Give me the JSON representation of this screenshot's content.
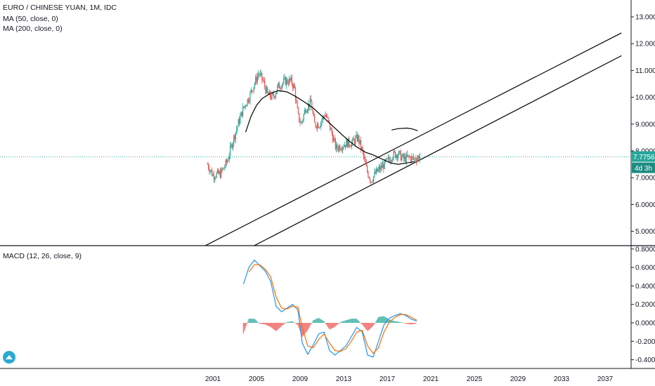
{
  "header": {
    "symbol_title": "EURO / CHINESE YUAN, 1M, IDC",
    "ma_fast": "MA (50, close, 0)",
    "ma_slow": "MA (200, close, 0)",
    "macd_title": "MACD (12, 26, close, 9)"
  },
  "price_badge": {
    "value": "7.7756",
    "countdown": "4d 3h"
  },
  "colors": {
    "up": "#26a69a",
    "down": "#ef5350",
    "ma": "#000000",
    "macd_line": "#2196f3",
    "signal_line": "#ff6d00",
    "hist_pos": "#26a69a",
    "hist_neg": "#ef5350",
    "price_line": "#26a69a",
    "channel": "#000000",
    "logo": "#2aa9d2"
  },
  "chart_data": [
    {
      "type": "candlestick",
      "title": "EURO / CHINESE YUAN, 1M, IDC",
      "x_ticks": [
        "2001",
        "2005",
        "2009",
        "2013",
        "2017",
        "2021",
        "2025",
        "2029",
        "2033",
        "2037"
      ],
      "y_ticks": [
        "5.0000",
        "6.0000",
        "7.0000",
        "8.0000",
        "9.0000",
        "10.0000",
        "11.0000",
        "12.0000",
        "13.0000"
      ],
      "ylim": [
        4.4,
        13.1
      ],
      "last_price": 7.7756,
      "close_path": [
        [
          2000.5,
          7.5
        ],
        [
          2001.0,
          7.1
        ],
        [
          2001.7,
          7.15
        ],
        [
          2002.3,
          7.6
        ],
        [
          2002.7,
          8.2
        ],
        [
          2003.3,
          9.0
        ],
        [
          2003.8,
          9.6
        ],
        [
          2004.3,
          10.0
        ],
        [
          2004.8,
          10.5
        ],
        [
          2005.2,
          10.9
        ],
        [
          2005.6,
          10.6
        ],
        [
          2006.0,
          10.1
        ],
        [
          2006.5,
          10.0
        ],
        [
          2007.0,
          10.4
        ],
        [
          2007.6,
          10.6
        ],
        [
          2008.2,
          10.6
        ],
        [
          2008.5,
          10.3
        ],
        [
          2008.8,
          9.3
        ],
        [
          2009.1,
          9.0
        ],
        [
          2009.5,
          9.6
        ],
        [
          2010.0,
          9.8
        ],
        [
          2010.3,
          9.0
        ],
        [
          2010.8,
          9.0
        ],
        [
          2011.3,
          9.4
        ],
        [
          2011.8,
          8.8
        ],
        [
          2012.3,
          8.1
        ],
        [
          2012.8,
          8.2
        ],
        [
          2013.3,
          8.3
        ],
        [
          2013.8,
          8.3
        ],
        [
          2014.3,
          8.5
        ],
        [
          2014.7,
          8.0
        ],
        [
          2015.1,
          7.3
        ],
        [
          2015.5,
          6.9
        ],
        [
          2016.0,
          7.2
        ],
        [
          2016.5,
          7.4
        ],
        [
          2017.0,
          7.6
        ],
        [
          2017.5,
          7.85
        ],
        [
          2018.0,
          7.9
        ],
        [
          2018.5,
          7.7
        ],
        [
          2019.0,
          7.75
        ],
        [
          2019.5,
          7.7
        ],
        [
          2020.0,
          7.8
        ]
      ],
      "series": [
        {
          "name": "MA (50, close, 0)",
          "points": [
            [
              2004.0,
              8.7
            ],
            [
              2004.5,
              9.3
            ],
            [
              2005.0,
              9.7
            ],
            [
              2005.5,
              9.95
            ],
            [
              2006.3,
              10.15
            ],
            [
              2007.0,
              10.25
            ],
            [
              2007.8,
              10.2
            ],
            [
              2008.5,
              10.05
            ],
            [
              2009.3,
              9.85
            ],
            [
              2010.2,
              9.6
            ],
            [
              2011.0,
              9.3
            ],
            [
              2011.8,
              9.0
            ],
            [
              2012.6,
              8.7
            ],
            [
              2013.4,
              8.4
            ],
            [
              2014.2,
              8.15
            ],
            [
              2015.0,
              7.95
            ],
            [
              2015.7,
              7.85
            ],
            [
              2016.5,
              7.7
            ],
            [
              2017.3,
              7.55
            ],
            [
              2018.0,
              7.5
            ],
            [
              2018.8,
              7.55
            ],
            [
              2019.5,
              7.6
            ]
          ]
        },
        {
          "name": "MA (200, close, 0)",
          "points": [
            [
              2017.4,
              8.78
            ],
            [
              2018.0,
              8.83
            ],
            [
              2018.8,
              8.85
            ],
            [
              2019.3,
              8.82
            ],
            [
              2019.8,
              8.75
            ]
          ]
        }
      ],
      "channel_lines": [
        {
          "from": [
            1999.5,
            4.3
          ],
          "to": [
            2038.5,
            12.4
          ]
        },
        {
          "from": [
            2004.0,
            4.3
          ],
          "to": [
            2038.5,
            11.55
          ]
        }
      ]
    },
    {
      "type": "line",
      "title": "MACD (12, 26, close, 9)",
      "y_ticks": [
        "0.8000",
        "0.6000",
        "0.4000",
        "0.2000",
        "0.0000",
        "-0.2000",
        "-0.4000"
      ],
      "ylim": [
        -0.55,
        0.8
      ],
      "series": [
        {
          "name": "MACD",
          "points": [
            [
              2003.8,
              0.42
            ],
            [
              2004.3,
              0.6
            ],
            [
              2004.8,
              0.68
            ],
            [
              2005.3,
              0.62
            ],
            [
              2005.8,
              0.56
            ],
            [
              2006.3,
              0.45
            ],
            [
              2006.8,
              0.18
            ],
            [
              2007.3,
              0.12
            ],
            [
              2007.8,
              0.16
            ],
            [
              2008.3,
              0.2
            ],
            [
              2008.8,
              0.14
            ],
            [
              2009.2,
              -0.22
            ],
            [
              2009.7,
              -0.34
            ],
            [
              2010.2,
              -0.24
            ],
            [
              2010.7,
              -0.12
            ],
            [
              2011.2,
              -0.1
            ],
            [
              2011.7,
              -0.3
            ],
            [
              2012.2,
              -0.35
            ],
            [
              2012.7,
              -0.3
            ],
            [
              2013.2,
              -0.25
            ],
            [
              2013.7,
              -0.15
            ],
            [
              2014.2,
              -0.05
            ],
            [
              2014.7,
              -0.1
            ],
            [
              2015.2,
              -0.35
            ],
            [
              2015.7,
              -0.37
            ],
            [
              2016.2,
              -0.2
            ],
            [
              2016.7,
              -0.02
            ],
            [
              2017.2,
              0.05
            ],
            [
              2017.7,
              0.08
            ],
            [
              2018.2,
              0.1
            ],
            [
              2018.7,
              0.08
            ],
            [
              2019.2,
              0.04
            ],
            [
              2019.7,
              0.02
            ]
          ]
        },
        {
          "name": "Signal",
          "points": [
            [
              2004.3,
              0.55
            ],
            [
              2004.8,
              0.63
            ],
            [
              2005.3,
              0.63
            ],
            [
              2005.8,
              0.58
            ],
            [
              2006.3,
              0.5
            ],
            [
              2006.8,
              0.28
            ],
            [
              2007.3,
              0.16
            ],
            [
              2007.8,
              0.15
            ],
            [
              2008.3,
              0.18
            ],
            [
              2008.8,
              0.17
            ],
            [
              2009.2,
              -0.05
            ],
            [
              2009.7,
              -0.25
            ],
            [
              2010.2,
              -0.27
            ],
            [
              2010.7,
              -0.18
            ],
            [
              2011.2,
              -0.12
            ],
            [
              2011.7,
              -0.22
            ],
            [
              2012.2,
              -0.3
            ],
            [
              2012.7,
              -0.31
            ],
            [
              2013.2,
              -0.28
            ],
            [
              2013.7,
              -0.2
            ],
            [
              2014.2,
              -0.1
            ],
            [
              2014.7,
              -0.08
            ],
            [
              2015.2,
              -0.25
            ],
            [
              2015.7,
              -0.33
            ],
            [
              2016.2,
              -0.27
            ],
            [
              2016.7,
              -0.1
            ],
            [
              2017.2,
              0.01
            ],
            [
              2017.7,
              0.06
            ],
            [
              2018.2,
              0.09
            ],
            [
              2018.7,
              0.09
            ],
            [
              2019.2,
              0.06
            ],
            [
              2019.7,
              0.03
            ]
          ]
        }
      ]
    }
  ]
}
